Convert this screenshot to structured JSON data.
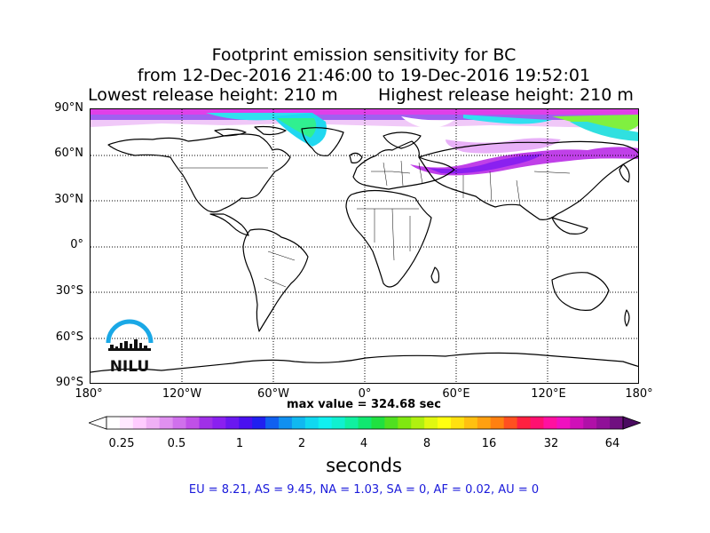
{
  "title": {
    "line1": "Footprint emission sensitivity for BC",
    "line2": "from 12-Dec-2016 21:46:00 to 19-Dec-2016 19:52:01",
    "lowest_release": "Lowest release height: 210 m",
    "highest_release": "Highest release height: 210 m"
  },
  "map": {
    "lat_labels": [
      "90°N",
      "60°N",
      "30°N",
      "0°",
      "30°S",
      "60°S",
      "90°S"
    ],
    "lon_labels": [
      "180°",
      "120°W",
      "60°W",
      "0°",
      "60°E",
      "120°E",
      "180°"
    ],
    "grid": "on",
    "features": [
      "coastlines",
      "country-borders",
      "emission-sensitivity-shading (Arctic and northern Russia)"
    ]
  },
  "max_value": "max value = 324.68 sec",
  "colorbar": {
    "tick_labels": [
      "0.25",
      "0.5",
      "1",
      "2",
      "4",
      "8",
      "16",
      "32",
      "64"
    ],
    "units": "seconds",
    "colors": [
      "#ffffff",
      "#ffe8ff",
      "#ffccff",
      "#f0b0f5",
      "#e090f0",
      "#d070ec",
      "#c050e8",
      "#a030e8",
      "#8a20f0",
      "#6a18f0",
      "#4a10f0",
      "#2020f0",
      "#1060f0",
      "#1090f0",
      "#10b8f0",
      "#10d8f0",
      "#10f0f0",
      "#10f0d0",
      "#10f0a0",
      "#10e870",
      "#20e040",
      "#50e020",
      "#80e810",
      "#b0f010",
      "#e0f810",
      "#ffff10",
      "#ffe010",
      "#ffc010",
      "#ffa010",
      "#ff8010",
      "#ff5020",
      "#ff2040",
      "#ff1070",
      "#ff10a0",
      "#f010c0",
      "#d010b8",
      "#b010a8",
      "#901098",
      "#701080"
    ]
  },
  "regions": "EU = 8.21,  AS = 9.45,  NA = 1.03,  SA = 0,  AF = 0.02,  AU = 0",
  "logo": {
    "text": "NILU"
  }
}
